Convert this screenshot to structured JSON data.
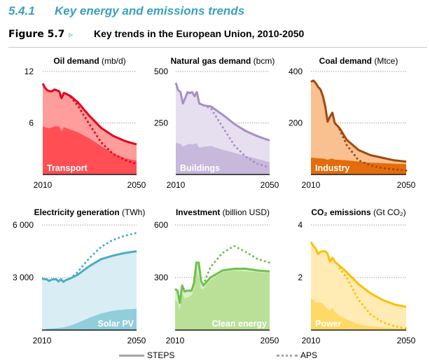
{
  "header": {
    "section_number": "5.4.1",
    "section_title": "Key energy and emissions trends",
    "figure_label": "Figure 5.7",
    "figure_marker": "▹",
    "figure_title": "Key trends in the European Union, 2010-2050"
  },
  "legend": [
    {
      "name": "STEPS",
      "style": "solid"
    },
    {
      "name": "APS",
      "style": "dotted"
    }
  ],
  "chart_data": [
    {
      "type": "area",
      "title": "Oil demand",
      "unit": "(mb/d)",
      "ylim": [
        0,
        12
      ],
      "yticks": [
        "6",
        "12"
      ],
      "ytick_values": [
        6,
        12
      ],
      "xlim": [
        2010,
        2050
      ],
      "xticks": [
        "2010",
        "2050"
      ],
      "area_label": "Transport",
      "colors": {
        "line": "#e8001c",
        "total_fill": "#ff9c9c",
        "sub_fill": "#ff4f55"
      },
      "x": [
        2010,
        2011,
        2012,
        2013,
        2014,
        2015,
        2016,
        2017,
        2018,
        2019,
        2020,
        2022,
        2025,
        2030,
        2035,
        2040,
        2045,
        2050
      ],
      "series": [
        {
          "name": "STEPS total",
          "values": [
            10.6,
            10.1,
            9.8,
            9.7,
            9.7,
            9.9,
            9.8,
            9.7,
            8.9,
            9.5,
            9.4,
            9.1,
            8.4,
            6.8,
            5.4,
            4.5,
            3.9,
            3.5
          ]
        },
        {
          "name": "APS total",
          "values": [
            null,
            null,
            null,
            null,
            null,
            null,
            null,
            null,
            null,
            null,
            null,
            9.0,
            8.0,
            5.8,
            3.7,
            2.4,
            1.7,
            1.2
          ]
        },
        {
          "name": "Transport",
          "values": [
            5.6,
            5.5,
            5.4,
            5.4,
            5.5,
            5.6,
            5.6,
            5.6,
            5.0,
            5.5,
            5.4,
            5.2,
            4.9,
            4.2,
            3.3,
            2.5,
            1.9,
            1.6
          ]
        }
      ]
    },
    {
      "type": "area",
      "title": "Natural gas demand",
      "unit": "(bcm)",
      "ylim": [
        0,
        500
      ],
      "yticks": [
        "250",
        "500"
      ],
      "ytick_values": [
        250,
        500
      ],
      "xlim": [
        2010,
        2050
      ],
      "xticks": [
        "2010",
        "2050"
      ],
      "area_label": "Buildings",
      "colors": {
        "line": "#a58fc6",
        "total_fill": "#e6dff0",
        "sub_fill": "#c7b8dc"
      },
      "x": [
        2010,
        2011,
        2012,
        2013,
        2014,
        2015,
        2016,
        2017,
        2018,
        2019,
        2020,
        2022,
        2025,
        2030,
        2035,
        2040,
        2045,
        2050
      ],
      "series": [
        {
          "name": "STEPS total",
          "values": [
            445,
            410,
            400,
            345,
            370,
            400,
            395,
            400,
            380,
            400,
            345,
            335,
            330,
            290,
            245,
            210,
            185,
            165
          ]
        },
        {
          "name": "APS total",
          "values": [
            null,
            null,
            null,
            null,
            null,
            null,
            null,
            null,
            null,
            null,
            null,
            335,
            320,
            230,
            140,
            85,
            50,
            35
          ]
        },
        {
          "name": "Buildings",
          "values": [
            155,
            150,
            150,
            135,
            140,
            145,
            150,
            145,
            150,
            150,
            130,
            135,
            138,
            120,
            105,
            90,
            75,
            60
          ]
        }
      ]
    },
    {
      "type": "area",
      "title": "Coal demand",
      "unit": "(Mtce)",
      "ylim": [
        0,
        400
      ],
      "yticks": [
        "200",
        "400"
      ],
      "ytick_values": [
        200,
        400
      ],
      "xlim": [
        2010,
        2050
      ],
      "xticks": [
        "2010",
        "2050"
      ],
      "area_label": "Industry",
      "colors": {
        "line": "#9e4a0e",
        "total_fill": "#f9c090",
        "sub_fill": "#e46c0a"
      },
      "x": [
        2010,
        2011,
        2012,
        2013,
        2014,
        2015,
        2016,
        2017,
        2018,
        2019,
        2020,
        2022,
        2025,
        2030,
        2035,
        2040,
        2045,
        2050
      ],
      "series": [
        {
          "name": "STEPS total",
          "values": [
            360,
            365,
            355,
            340,
            330,
            305,
            265,
            205,
            225,
            240,
            200,
            180,
            135,
            95,
            75,
            65,
            55,
            50
          ]
        },
        {
          "name": "APS total",
          "values": [
            null,
            null,
            null,
            null,
            null,
            null,
            null,
            null,
            null,
            null,
            null,
            175,
            115,
            55,
            35,
            25,
            20,
            15
          ]
        },
        {
          "name": "Industry",
          "values": [
            65,
            65,
            63,
            63,
            62,
            62,
            60,
            57,
            60,
            62,
            58,
            57,
            55,
            50,
            46,
            44,
            42,
            40
          ]
        }
      ]
    },
    {
      "type": "area",
      "title": "Electricity generation",
      "unit": "(TWh)",
      "ylim": [
        0,
        6000
      ],
      "yticks": [
        "3 000",
        "6 000"
      ],
      "ytick_values": [
        3000,
        6000
      ],
      "xlim": [
        2010,
        2050
      ],
      "xticks": [
        "2010",
        "2050"
      ],
      "area_label": "Solar PV",
      "colors": {
        "line": "#4bacc6",
        "total_fill": "#d9edf4",
        "sub_fill": "#92cddc"
      },
      "x": [
        2010,
        2011,
        2012,
        2013,
        2014,
        2015,
        2016,
        2017,
        2018,
        2019,
        2020,
        2022,
        2025,
        2030,
        2035,
        2040,
        2045,
        2050
      ],
      "series": [
        {
          "name": "STEPS total",
          "values": [
            2950,
            2900,
            2900,
            2800,
            2880,
            2900,
            2900,
            2780,
            2900,
            2750,
            2850,
            2950,
            3150,
            3650,
            4050,
            4250,
            4400,
            4500
          ]
        },
        {
          "name": "APS total",
          "values": [
            null,
            null,
            null,
            null,
            null,
            null,
            null,
            null,
            null,
            null,
            null,
            2950,
            3300,
            4100,
            4750,
            5150,
            5380,
            5550
          ]
        },
        {
          "name": "Solar PV",
          "values": [
            20,
            40,
            60,
            80,
            90,
            100,
            110,
            120,
            140,
            150,
            180,
            250,
            400,
            700,
            950,
            1100,
            1180,
            1220
          ]
        }
      ]
    },
    {
      "type": "area",
      "title": "Investment",
      "unit": "(billion USD)",
      "ylim": [
        0,
        600
      ],
      "yticks": [
        "300",
        "600"
      ],
      "ytick_values": [
        300,
        600
      ],
      "xlim": [
        2010,
        2050
      ],
      "xticks": [
        "2010",
        "2050"
      ],
      "area_label": "Clean energy",
      "colors": {
        "line": "#6cc24a",
        "total_fill": "#d8eec8",
        "sub_fill": "#b9e096"
      },
      "x": [
        2010,
        2011,
        2012,
        2013,
        2014,
        2015,
        2016,
        2017,
        2018,
        2019,
        2020,
        2021,
        2022,
        2025,
        2030,
        2035,
        2040,
        2045,
        2050
      ],
      "series": [
        {
          "name": "STEPS total",
          "values": [
            235,
            225,
            155,
            255,
            220,
            225,
            225,
            225,
            270,
            385,
            385,
            280,
            255,
            300,
            340,
            350,
            350,
            340,
            335
          ]
        },
        {
          "name": "APS total",
          "values": [
            null,
            null,
            null,
            null,
            null,
            null,
            null,
            null,
            null,
            null,
            null,
            null,
            260,
            360,
            440,
            480,
            445,
            405,
            385
          ]
        },
        {
          "name": "Clean energy",
          "values": [
            175,
            160,
            110,
            210,
            180,
            185,
            190,
            200,
            230,
            345,
            300,
            235,
            235,
            285,
            330,
            340,
            335,
            330,
            325
          ]
        }
      ]
    },
    {
      "type": "area",
      "title": "CO₂ emissions",
      "title_html_sub": true,
      "unit": "(Gt CO₂)",
      "ylim": [
        0,
        4
      ],
      "yticks": [
        "2",
        "4"
      ],
      "ytick_values": [
        2,
        4
      ],
      "xlim": [
        2010,
        2050
      ],
      "xticks": [
        "2010",
        "2050"
      ],
      "area_label": "Power",
      "colors": {
        "line": "#ffc000",
        "total_fill": "#ffebb3",
        "sub_fill": "#ffd966"
      },
      "x": [
        2010,
        2011,
        2012,
        2013,
        2014,
        2015,
        2016,
        2017,
        2018,
        2019,
        2020,
        2022,
        2025,
        2030,
        2035,
        2040,
        2045,
        2050
      ],
      "series": [
        {
          "name": "STEPS total",
          "values": [
            3.35,
            3.2,
            3.1,
            2.9,
            2.97,
            3.0,
            3.0,
            2.9,
            2.6,
            2.75,
            2.6,
            2.45,
            2.2,
            1.75,
            1.4,
            1.15,
            0.98,
            0.88
          ]
        },
        {
          "name": "APS total",
          "values": [
            null,
            null,
            null,
            null,
            null,
            null,
            null,
            null,
            null,
            null,
            null,
            2.35,
            2.0,
            1.15,
            0.6,
            0.3,
            0.15,
            0.06
          ]
        },
        {
          "name": "Power",
          "values": [
            1.2,
            1.15,
            1.05,
            1.05,
            1.05,
            1.0,
            0.9,
            0.8,
            0.75,
            0.85,
            0.7,
            0.55,
            0.4,
            0.22,
            0.14,
            0.1,
            0.07,
            0.05
          ]
        }
      ]
    }
  ]
}
